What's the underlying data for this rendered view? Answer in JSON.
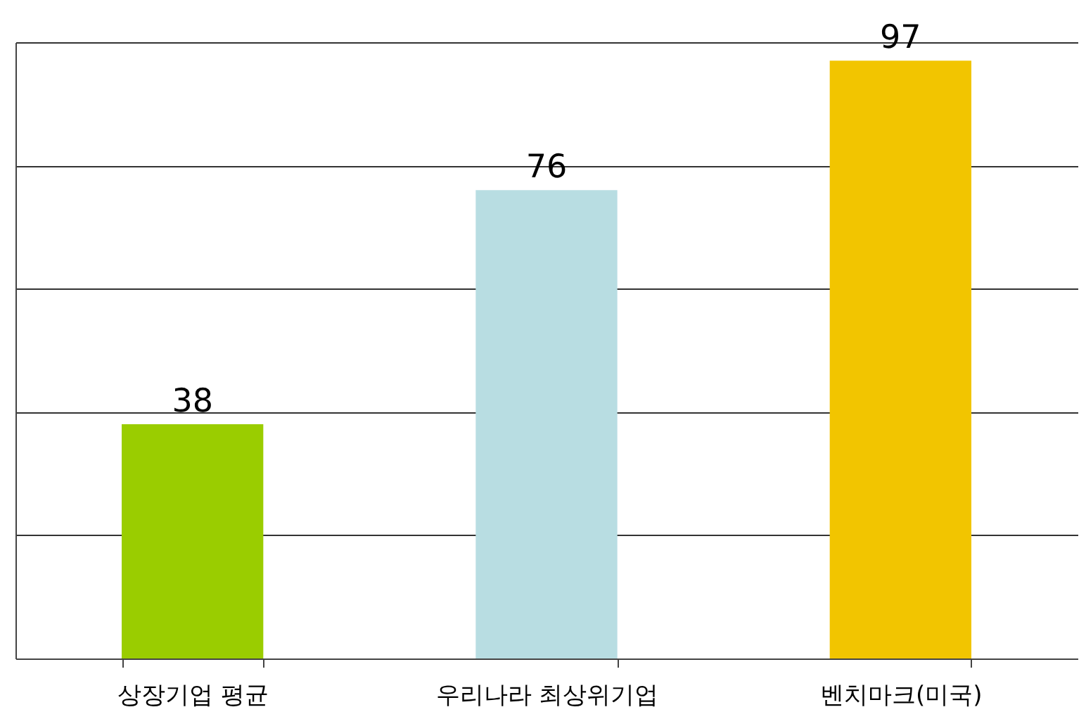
{
  "chart_data": {
    "type": "bar",
    "categories": [
      "상장기업 평균",
      "우리나라 최상위기업",
      "벤치마크(미국)"
    ],
    "values": [
      38,
      76,
      97
    ],
    "colors": [
      "#9acd00",
      "#b8dde2",
      "#f2c500"
    ],
    "ylim": [
      0,
      100
    ],
    "yticks": [
      {
        "value": 0,
        "label": null
      },
      {
        "value": 20,
        "label": null
      },
      {
        "value": 40,
        "label": null
      },
      {
        "value": 60,
        "label": null
      },
      {
        "value": 80,
        "label": null
      },
      {
        "value": 100,
        "label": null
      }
    ],
    "tick_labels": "x",
    "grid": "y",
    "data_labels": true
  }
}
